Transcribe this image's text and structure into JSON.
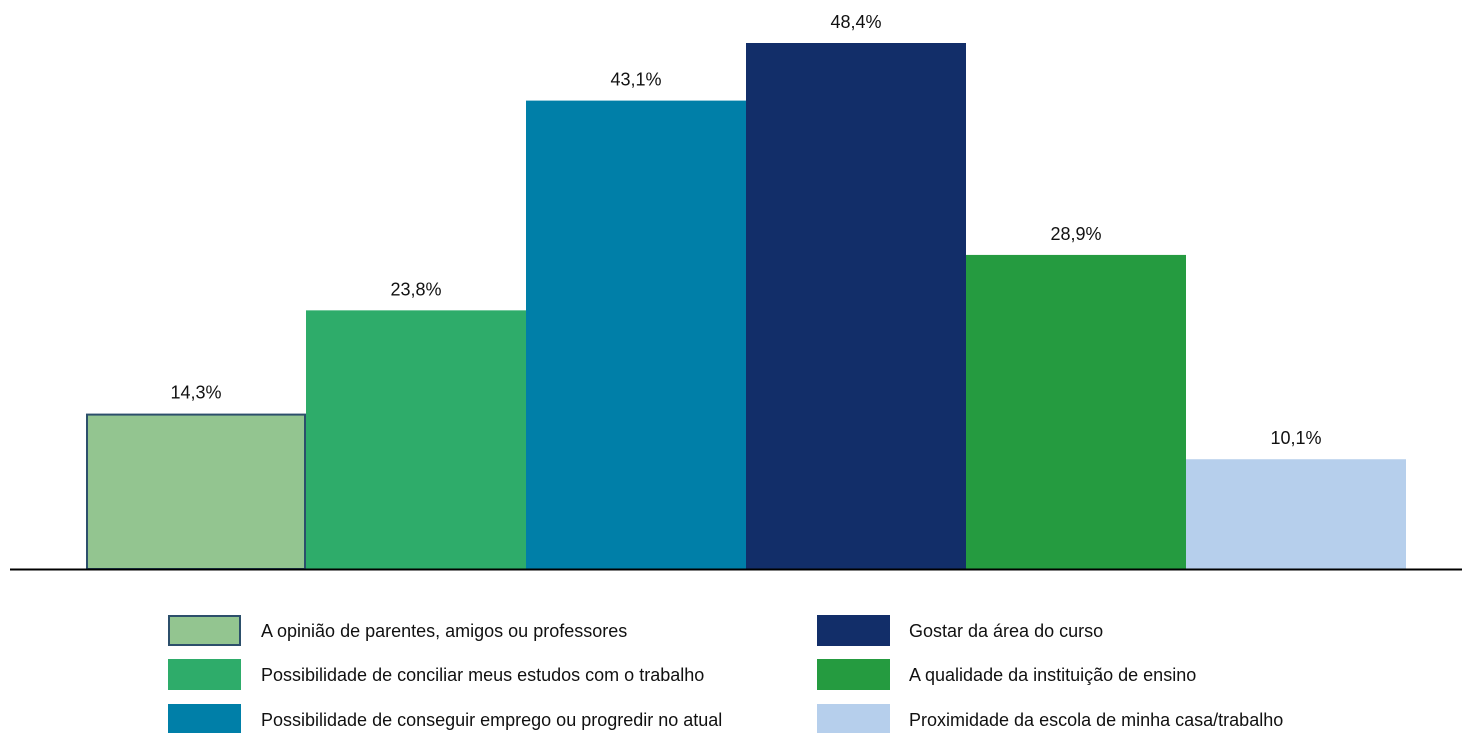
{
  "chart_data": {
    "type": "bar",
    "title": "",
    "xlabel": "",
    "ylabel": "",
    "ylim": [
      0,
      50
    ],
    "grid": false,
    "legend_position": "bottom",
    "categories": [
      "A opinião de parentes, amigos ou professores",
      "Possibilidade de conciliar meus estudos com o trabalho",
      "Possibilidade de conseguir emprego ou progredir no atual",
      "Gostar da área do curso",
      "A qualidade da instituição de ensino",
      "Proximidade da escola de minha casa/trabalho"
    ],
    "values": [
      14.3,
      23.8,
      43.1,
      48.4,
      28.9,
      10.1
    ],
    "value_labels": [
      "14,3%",
      "23,8%",
      "43,1%",
      "48,4%",
      "28,9%",
      "10,1%"
    ],
    "colors": [
      "#93c590",
      "#2eac6a",
      "#007fa8",
      "#122e69",
      "#259b40",
      "#b6cfec"
    ],
    "first_bar_stroke": "#2c4f6b"
  }
}
